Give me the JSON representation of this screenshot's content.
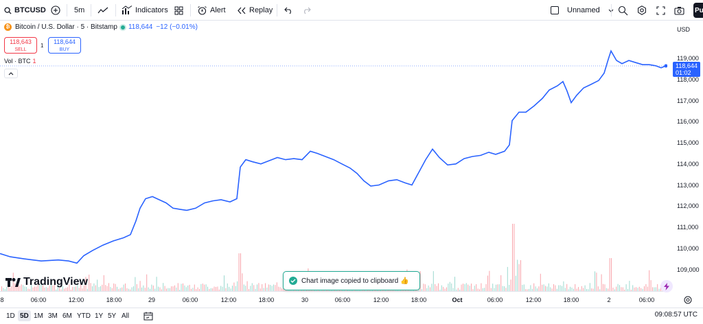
{
  "toolbar": {
    "symbol": "BTCUSD",
    "interval": "5m",
    "indicators": "Indicators",
    "alert": "Alert",
    "replay": "Replay",
    "layout_name": "Unnamed",
    "publish": "Pu"
  },
  "legend": {
    "title": "Bitcoin / U.S. Dollar · 5 · Bitstamp",
    "price": "118,644",
    "change": "−12 (−0.01%)",
    "btc_glyph": "₿"
  },
  "trade": {
    "sell_price": "118,643",
    "sell_label": "SELL",
    "spread": "1",
    "buy_price": "118,644",
    "buy_label": "BUY"
  },
  "volume": {
    "label": "Vol · BTC",
    "value": "1"
  },
  "price_axis": {
    "currency": "USD",
    "ticks": [
      "119,000",
      "118,000",
      "117,000",
      "116,000",
      "115,000",
      "114,000",
      "113,000",
      "112,000",
      "111,000",
      "110,000",
      "109,000"
    ],
    "current_price": "118,644",
    "countdown": "01:02"
  },
  "time_axis": {
    "ticks": [
      {
        "label": "8",
        "bold": false
      },
      {
        "label": "06:00",
        "bold": false
      },
      {
        "label": "12:00",
        "bold": false
      },
      {
        "label": "18:00",
        "bold": false
      },
      {
        "label": "29",
        "bold": false
      },
      {
        "label": "06:00",
        "bold": false
      },
      {
        "label": "12:00",
        "bold": false
      },
      {
        "label": "18:00",
        "bold": false
      },
      {
        "label": "30",
        "bold": false
      },
      {
        "label": "06:00",
        "bold": false
      },
      {
        "label": "12:00",
        "bold": false
      },
      {
        "label": "18:00",
        "bold": false
      },
      {
        "label": "Oct",
        "bold": true
      },
      {
        "label": "06:00",
        "bold": false
      },
      {
        "label": "12:00",
        "bold": false
      },
      {
        "label": "18:00",
        "bold": false
      },
      {
        "label": "2",
        "bold": false
      },
      {
        "label": "06:00",
        "bold": false
      }
    ]
  },
  "ranges": [
    "1D",
    "5D",
    "1M",
    "3M",
    "6M",
    "YTD",
    "1Y",
    "5Y",
    "All"
  ],
  "active_range": "5D",
  "clock": "09:08:57 UTC",
  "watermark": "TradingView",
  "toast": "Chart image copied to clipboard 👍",
  "colors": {
    "line": "#2962ff",
    "vol_up": "#22ab94",
    "vol_down": "#f23645",
    "toast_border": "#22ab94"
  },
  "chart_data": {
    "type": "line",
    "ylim": [
      108500,
      119900
    ],
    "x_range": [
      "Sep 28",
      "Oct 2 09:05"
    ],
    "series": [
      {
        "values": [
          [
            0,
            109750
          ],
          [
            15,
            109600
          ],
          [
            35,
            109500
          ],
          [
            60,
            109400
          ],
          [
            85,
            109450
          ],
          [
            100,
            109400
          ],
          [
            112,
            109300
          ],
          [
            122,
            109650
          ],
          [
            135,
            109900
          ],
          [
            150,
            110150
          ],
          [
            165,
            110350
          ],
          [
            180,
            110500
          ],
          [
            190,
            110650
          ],
          [
            198,
            111300
          ],
          [
            204,
            111900
          ],
          [
            212,
            112350
          ],
          [
            222,
            112450
          ],
          [
            232,
            112300
          ],
          [
            242,
            112150
          ],
          [
            252,
            111900
          ],
          [
            262,
            111850
          ],
          [
            272,
            111800
          ],
          [
            285,
            111900
          ],
          [
            298,
            112150
          ],
          [
            310,
            112250
          ],
          [
            322,
            112300
          ],
          [
            335,
            112200
          ],
          [
            345,
            112350
          ],
          [
            350,
            113850
          ],
          [
            358,
            114200
          ],
          [
            368,
            114100
          ],
          [
            380,
            114000
          ],
          [
            392,
            114150
          ],
          [
            404,
            114300
          ],
          [
            416,
            114200
          ],
          [
            428,
            114250
          ],
          [
            440,
            114200
          ],
          [
            452,
            114600
          ],
          [
            462,
            114500
          ],
          [
            474,
            114350
          ],
          [
            486,
            114200
          ],
          [
            498,
            114000
          ],
          [
            510,
            113800
          ],
          [
            520,
            113550
          ],
          [
            530,
            113200
          ],
          [
            540,
            112950
          ],
          [
            552,
            113000
          ],
          [
            566,
            113200
          ],
          [
            578,
            113250
          ],
          [
            590,
            113100
          ],
          [
            600,
            113000
          ],
          [
            610,
            113600
          ],
          [
            620,
            114200
          ],
          [
            630,
            114700
          ],
          [
            640,
            114300
          ],
          [
            652,
            113950
          ],
          [
            664,
            114000
          ],
          [
            676,
            114250
          ],
          [
            688,
            114350
          ],
          [
            700,
            114400
          ],
          [
            712,
            114550
          ],
          [
            722,
            114450
          ],
          [
            735,
            114600
          ],
          [
            742,
            114900
          ],
          [
            746,
            116050
          ],
          [
            756,
            116450
          ],
          [
            766,
            116450
          ],
          [
            778,
            116750
          ],
          [
            790,
            117100
          ],
          [
            800,
            117500
          ],
          [
            812,
            117700
          ],
          [
            820,
            117900
          ],
          [
            826,
            117450
          ],
          [
            832,
            116900
          ],
          [
            840,
            117250
          ],
          [
            850,
            117600
          ],
          [
            860,
            117750
          ],
          [
            872,
            117950
          ],
          [
            880,
            118300
          ],
          [
            886,
            118950
          ],
          [
            890,
            119350
          ],
          [
            898,
            118900
          ],
          [
            906,
            118750
          ],
          [
            916,
            118900
          ],
          [
            926,
            118800
          ],
          [
            936,
            118700
          ],
          [
            946,
            118700
          ],
          [
            955,
            118650
          ],
          [
            963,
            118550
          ],
          [
            970,
            118644
          ]
        ]
      }
    ],
    "last_value": 118644,
    "previous_close_line": 118644
  }
}
